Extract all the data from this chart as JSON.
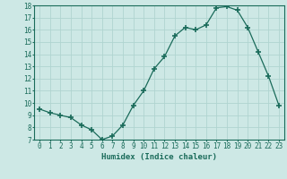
{
  "x": [
    0,
    1,
    2,
    3,
    4,
    5,
    6,
    7,
    8,
    9,
    10,
    11,
    12,
    13,
    14,
    15,
    16,
    17,
    18,
    19,
    20,
    21,
    22,
    23
  ],
  "y": [
    9.5,
    9.2,
    9.0,
    8.8,
    8.2,
    7.8,
    7.0,
    7.3,
    8.2,
    9.8,
    11.0,
    12.8,
    13.8,
    15.5,
    16.2,
    16.0,
    16.4,
    17.8,
    17.9,
    17.6,
    16.2,
    14.2,
    12.2,
    9.8
  ],
  "xlabel": "Humidex (Indice chaleur)",
  "line_color": "#1a6b5a",
  "marker": "+",
  "marker_size": 4,
  "marker_linewidth": 1.2,
  "bg_color": "#cde8e5",
  "grid_color": "#b0d4d0",
  "ylim": [
    7,
    18
  ],
  "xlim": [
    -0.5,
    23.5
  ],
  "yticks": [
    7,
    8,
    9,
    10,
    11,
    12,
    13,
    14,
    15,
    16,
    17,
    18
  ],
  "xticks": [
    0,
    1,
    2,
    3,
    4,
    5,
    6,
    7,
    8,
    9,
    10,
    11,
    12,
    13,
    14,
    15,
    16,
    17,
    18,
    19,
    20,
    21,
    22,
    23
  ],
  "tick_fontsize": 5.5,
  "label_fontsize": 6.5,
  "spine_color": "#1a6b5a"
}
